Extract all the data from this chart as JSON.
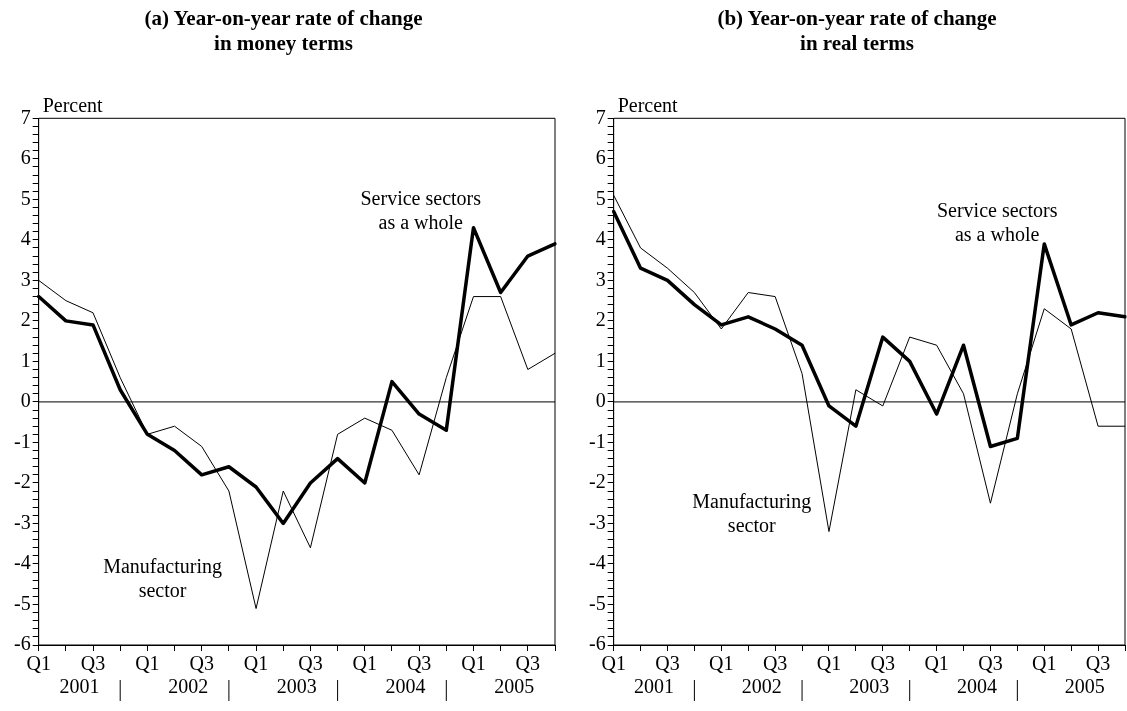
{
  "chart_data": [
    {
      "type": "line",
      "title": "(a) Year-on-year rate of change\nin money terms",
      "ylabel": "Percent",
      "categories": [
        "Q1",
        null,
        "Q3",
        null,
        "Q1",
        null,
        "Q3",
        null,
        "Q1",
        null,
        "Q3",
        null,
        "Q1",
        null,
        "Q3",
        null,
        "Q1",
        null,
        "Q3",
        null
      ],
      "annotations": [
        "2001",
        "2002",
        "2003",
        "2004",
        "2005"
      ],
      "series": [
        {
          "name": "Service sectors\nas a whole",
          "color": "#000000",
          "values": [
            2.6,
            2.0,
            1.9,
            0.3,
            -0.8,
            -1.2,
            -1.8,
            -1.6,
            -2.1,
            -3.0,
            -2.0,
            -1.4,
            -2.0,
            0.5,
            -0.3,
            -0.7,
            4.3,
            2.7,
            3.6,
            3.9
          ]
        },
        {
          "name": "Manufacturing\nsector",
          "color": "#000000",
          "values": [
            3.0,
            2.5,
            2.2,
            0.6,
            -0.8,
            -0.6,
            -1.1,
            -2.2,
            -5.1,
            -2.2,
            -3.6,
            -0.8,
            -0.4,
            -0.7,
            -1.8,
            0.6,
            2.6,
            2.6,
            0.8,
            1.2
          ]
        }
      ],
      "ylim": [
        -6,
        7
      ],
      "yticks": [
        -6,
        {
          "value": -5.8,
          "label": null
        },
        {
          "value": -5.6,
          "label": null
        },
        {
          "value": -5.4,
          "label": null
        },
        {
          "value": -5.2,
          "label": null
        },
        -5,
        {
          "value": -4.8,
          "label": null
        },
        {
          "value": -4.6,
          "label": null
        },
        {
          "value": -4.4,
          "label": null
        },
        {
          "value": -4.2,
          "label": null
        },
        -4,
        {
          "value": -3.8,
          "label": null
        },
        {
          "value": -3.6,
          "label": null
        },
        {
          "value": -3.4,
          "label": null
        },
        {
          "value": -3.2,
          "label": null
        },
        -3,
        {
          "value": -2.8,
          "label": null
        },
        {
          "value": -2.6,
          "label": null
        },
        {
          "value": -2.4,
          "label": null
        },
        {
          "value": -2.2,
          "label": null
        },
        -2,
        {
          "value": -1.8,
          "label": null
        },
        {
          "value": -1.6,
          "label": null
        },
        {
          "value": -1.4,
          "label": null
        },
        {
          "value": -1.2,
          "label": null
        },
        -1,
        {
          "value": -0.8,
          "label": null
        },
        {
          "value": -0.6,
          "label": null
        },
        {
          "value": -0.4,
          "label": null
        },
        {
          "value": -0.2,
          "label": null
        },
        0,
        {
          "value": 0.2,
          "label": null
        },
        {
          "value": 0.4,
          "label": null
        },
        {
          "value": 0.6,
          "label": null
        },
        {
          "value": 0.8,
          "label": null
        },
        1,
        {
          "value": 1.2,
          "label": null
        },
        {
          "value": 1.4,
          "label": null
        },
        {
          "value": 1.6,
          "label": null
        },
        {
          "value": 1.8,
          "label": null
        },
        2,
        {
          "value": 2.2,
          "label": null
        },
        {
          "value": 2.4,
          "label": null
        },
        {
          "value": 2.6,
          "label": null
        },
        {
          "value": 2.8,
          "label": null
        },
        3,
        {
          "value": 3.2,
          "label": null
        },
        {
          "value": 3.4,
          "label": null
        },
        {
          "value": 3.6,
          "label": null
        },
        {
          "value": 3.8,
          "label": null
        },
        4,
        {
          "value": 4.2,
          "label": null
        },
        {
          "value": 4.4,
          "label": null
        },
        {
          "value": 4.6,
          "label": null
        },
        {
          "value": 4.8,
          "label": null
        },
        5,
        {
          "value": 5.2,
          "label": null
        },
        {
          "value": 5.4,
          "label": null
        },
        {
          "value": 5.6,
          "label": null
        },
        {
          "value": 5.8,
          "label": null
        },
        6,
        {
          "value": 6.2,
          "label": null
        },
        {
          "value": 6.4,
          "label": null
        },
        {
          "value": 6.6,
          "label": null
        },
        {
          "value": 6.8,
          "label": null
        },
        7
      ],
      "ref_lines": [
        {
          "axis": "y",
          "value": 0
        }
      ],
      "grid": false,
      "legend": false,
      "marker": "none",
      "line_style": "solid"
    },
    {
      "type": "line",
      "title": "(b) Year-on-year rate of change\nin real terms",
      "ylabel": "Percent",
      "categories": [
        "Q1",
        null,
        "Q3",
        null,
        "Q1",
        null,
        "Q3",
        null,
        "Q1",
        null,
        "Q3",
        null,
        "Q1",
        null,
        "Q3",
        null,
        "Q1",
        null,
        "Q3",
        null
      ],
      "annotations": [
        "2001",
        "2002",
        "2003",
        "2004",
        "2005"
      ],
      "series": [
        {
          "name": "Service sectors\nas a whole",
          "color": "#000000",
          "values": [
            4.7,
            3.3,
            3.0,
            2.4,
            1.9,
            2.1,
            1.8,
            1.4,
            -0.1,
            -0.6,
            1.6,
            1.0,
            -0.3,
            1.4,
            -1.1,
            -0.9,
            3.9,
            1.9,
            2.2,
            2.1
          ]
        },
        {
          "name": "Manufacturing\nsector",
          "color": "#000000",
          "values": [
            5.1,
            3.8,
            3.3,
            2.7,
            1.8,
            2.7,
            2.6,
            0.7,
            -3.2,
            0.3,
            -0.1,
            1.6,
            1.4,
            0.2,
            -2.5,
            0.2,
            2.3,
            1.8,
            -0.6,
            -0.6
          ]
        }
      ],
      "ylim": [
        -6,
        7
      ],
      "yticks": [
        -6,
        {
          "value": -5.8,
          "label": null
        },
        {
          "value": -5.6,
          "label": null
        },
        {
          "value": -5.4,
          "label": null
        },
        {
          "value": -5.2,
          "label": null
        },
        -5,
        {
          "value": -4.8,
          "label": null
        },
        {
          "value": -4.6,
          "label": null
        },
        {
          "value": -4.4,
          "label": null
        },
        {
          "value": -4.2,
          "label": null
        },
        -4,
        {
          "value": -3.8,
          "label": null
        },
        {
          "value": -3.6,
          "label": null
        },
        {
          "value": -3.4,
          "label": null
        },
        {
          "value": -3.2,
          "label": null
        },
        -3,
        {
          "value": -2.8,
          "label": null
        },
        {
          "value": -2.6,
          "label": null
        },
        {
          "value": -2.4,
          "label": null
        },
        {
          "value": -2.2,
          "label": null
        },
        -2,
        {
          "value": -1.8,
          "label": null
        },
        {
          "value": -1.6,
          "label": null
        },
        {
          "value": -1.4,
          "label": null
        },
        {
          "value": -1.2,
          "label": null
        },
        -1,
        {
          "value": -0.8,
          "label": null
        },
        {
          "value": -0.6,
          "label": null
        },
        {
          "value": -0.4,
          "label": null
        },
        {
          "value": -0.2,
          "label": null
        },
        0,
        {
          "value": 0.2,
          "label": null
        },
        {
          "value": 0.4,
          "label": null
        },
        {
          "value": 0.6,
          "label": null
        },
        {
          "value": 0.8,
          "label": null
        },
        1,
        {
          "value": 1.2,
          "label": null
        },
        {
          "value": 1.4,
          "label": null
        },
        {
          "value": 1.6,
          "label": null
        },
        {
          "value": 1.8,
          "label": null
        },
        2,
        {
          "value": 2.2,
          "label": null
        },
        {
          "value": 2.4,
          "label": null
        },
        {
          "value": 2.6,
          "label": null
        },
        {
          "value": 2.8,
          "label": null
        },
        3,
        {
          "value": 3.2,
          "label": null
        },
        {
          "value": 3.4,
          "label": null
        },
        {
          "value": 3.6,
          "label": null
        },
        {
          "value": 3.8,
          "label": null
        },
        4,
        {
          "value": 4.2,
          "label": null
        },
        {
          "value": 4.4,
          "label": null
        },
        {
          "value": 4.6,
          "label": null
        },
        {
          "value": 4.8,
          "label": null
        },
        5,
        {
          "value": 5.2,
          "label": null
        },
        {
          "value": 5.4,
          "label": null
        },
        {
          "value": 5.6,
          "label": null
        },
        {
          "value": 5.8,
          "label": null
        },
        6,
        {
          "value": 6.2,
          "label": null
        },
        {
          "value": 6.4,
          "label": null
        },
        {
          "value": 6.6,
          "label": null
        },
        {
          "value": 6.8,
          "label": null
        },
        7
      ],
      "ref_lines": [
        {
          "axis": "y",
          "value": 0
        }
      ],
      "grid": false,
      "legend": false,
      "marker": "none",
      "line_style": "solid"
    }
  ]
}
